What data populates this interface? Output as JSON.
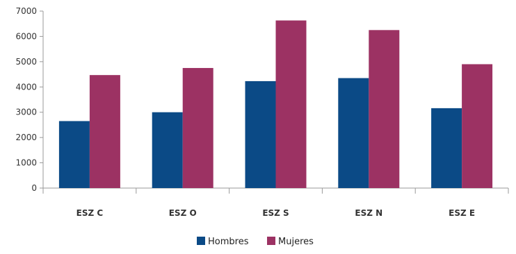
{
  "chart_data": {
    "type": "bar",
    "categories": [
      "ESZ C",
      "ESZ O",
      "ESZ S",
      "ESZ N",
      "ESZ E"
    ],
    "series": [
      {
        "name": "Hombres",
        "color": "#0b4a86",
        "values": [
          2650,
          3000,
          4230,
          4350,
          3160
        ]
      },
      {
        "name": "Mujeres",
        "color": "#9c3263",
        "values": [
          4470,
          4750,
          6630,
          6250,
          4900
        ]
      }
    ],
    "yticks": [
      0,
      1000,
      2000,
      3000,
      4000,
      5000,
      6000,
      7000
    ],
    "ylim": [
      0,
      7000
    ],
    "grid": false,
    "legend_position": "bottom"
  }
}
